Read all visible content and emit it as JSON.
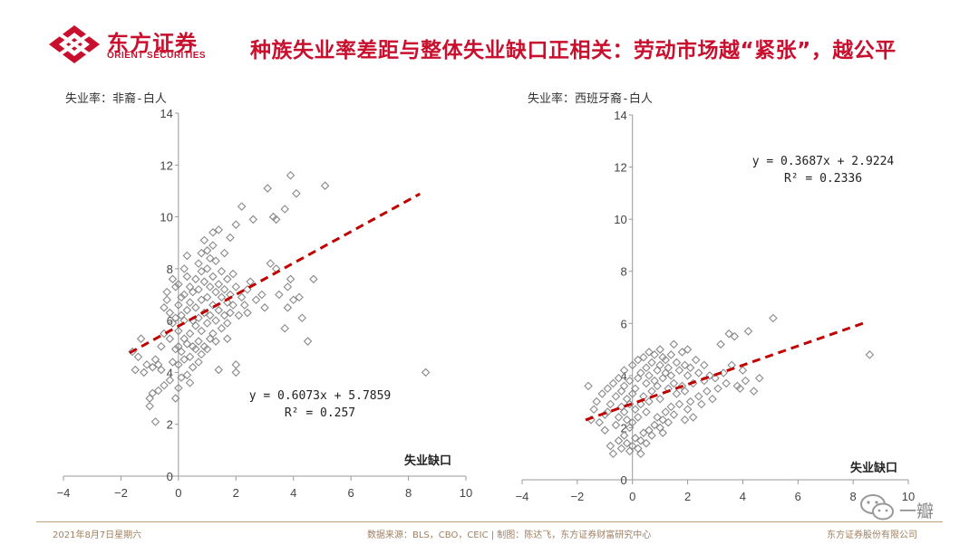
{
  "header": {
    "logo_cn": "东方证券",
    "logo_en": "ORIENT SECURITIES",
    "headline": "种族失业率差距与整体失业缺口正相关：劳动市场越“紧张”，越公平"
  },
  "footer": {
    "date": "2021年8月7日星期六",
    "source": "数据来源：BLS，CBO，CEIC | 制图：陈达飞，东方证券财富研究中心",
    "company": "东方证券股份有限公司"
  },
  "watermark": {
    "text": "一瓣"
  },
  "chart_data": [
    {
      "type": "scatter",
      "ylabel": "失业率：非裔-白人",
      "xlabel": "失业缺口",
      "xlim": [
        -4,
        10
      ],
      "ylim": [
        0,
        14
      ],
      "xticks": [
        -4,
        -2,
        0,
        2,
        4,
        6,
        8,
        10
      ],
      "yticks": [
        0,
        2,
        4,
        6,
        8,
        10,
        12,
        14
      ],
      "grid": false,
      "trendline": {
        "slope": 0.6073,
        "intercept": 5.7859,
        "x_range": [
          -1.7,
          8.4
        ]
      },
      "equation": "y = 0.6073x + 5.7859",
      "r2": "R² = 0.257",
      "points": [
        [
          -1.6,
          4.8
        ],
        [
          -1.5,
          4.1
        ],
        [
          -1.4,
          4.6
        ],
        [
          -1.3,
          5.3
        ],
        [
          -1.2,
          4.0
        ],
        [
          -1.1,
          4.3
        ],
        [
          -1.0,
          3.0
        ],
        [
          -1.0,
          2.7
        ],
        [
          -0.9,
          3.2
        ],
        [
          -0.9,
          4.2
        ],
        [
          -0.8,
          2.1
        ],
        [
          -0.8,
          4.5
        ],
        [
          -0.7,
          3.3
        ],
        [
          -0.6,
          4.1
        ],
        [
          -0.6,
          5.0
        ],
        [
          -0.5,
          3.5
        ],
        [
          -0.5,
          5.5
        ],
        [
          -0.5,
          6.5
        ],
        [
          -0.4,
          7.1
        ],
        [
          -0.4,
          6.8
        ],
        [
          -0.3,
          3.7
        ],
        [
          -0.3,
          5.3
        ],
        [
          -0.3,
          6.3
        ],
        [
          -0.2,
          7.6
        ],
        [
          -0.2,
          4.4
        ],
        [
          -0.2,
          5.9
        ],
        [
          -0.1,
          3.0
        ],
        [
          -0.1,
          4.9
        ],
        [
          -0.1,
          6.1
        ],
        [
          -0.1,
          7.3
        ],
        [
          0.0,
          3.4
        ],
        [
          0.0,
          4.3
        ],
        [
          0.0,
          5.0
        ],
        [
          0.0,
          5.6
        ],
        [
          0.0,
          6.6
        ],
        [
          0.0,
          7.4
        ],
        [
          0.1,
          3.8
        ],
        [
          0.1,
          4.8
        ],
        [
          0.1,
          6.2
        ],
        [
          0.1,
          6.9
        ],
        [
          0.2,
          4.5
        ],
        [
          0.2,
          5.3
        ],
        [
          0.2,
          6.0
        ],
        [
          0.2,
          7.0
        ],
        [
          0.2,
          8.0
        ],
        [
          0.3,
          3.9
        ],
        [
          0.3,
          5.1
        ],
        [
          0.3,
          6.4
        ],
        [
          0.3,
          7.7
        ],
        [
          0.3,
          8.5
        ],
        [
          0.4,
          4.6
        ],
        [
          0.4,
          5.5
        ],
        [
          0.4,
          6.7
        ],
        [
          0.4,
          7.3
        ],
        [
          0.5,
          4.2
        ],
        [
          0.5,
          5.0
        ],
        [
          0.5,
          6.0
        ],
        [
          0.5,
          7.1
        ],
        [
          0.6,
          4.9
        ],
        [
          0.6,
          5.8
        ],
        [
          0.6,
          6.5
        ],
        [
          0.6,
          7.6
        ],
        [
          0.7,
          4.4
        ],
        [
          0.7,
          5.2
        ],
        [
          0.7,
          6.1
        ],
        [
          0.7,
          7.2
        ],
        [
          0.7,
          8.2
        ],
        [
          0.8,
          4.7
        ],
        [
          0.8,
          5.6
        ],
        [
          0.8,
          6.8
        ],
        [
          0.8,
          7.9
        ],
        [
          0.8,
          8.6
        ],
        [
          0.9,
          5.0
        ],
        [
          0.9,
          6.3
        ],
        [
          0.9,
          7.5
        ],
        [
          0.9,
          9.1
        ],
        [
          1.0,
          4.9
        ],
        [
          1.0,
          5.9
        ],
        [
          1.0,
          6.9
        ],
        [
          1.0,
          8.0
        ],
        [
          1.0,
          8.7
        ],
        [
          1.1,
          5.3
        ],
        [
          1.1,
          6.2
        ],
        [
          1.1,
          7.3
        ],
        [
          1.1,
          8.4
        ],
        [
          1.2,
          5.5
        ],
        [
          1.2,
          6.6
        ],
        [
          1.2,
          7.7
        ],
        [
          1.2,
          8.9
        ],
        [
          1.2,
          9.4
        ],
        [
          1.3,
          5.2
        ],
        [
          1.3,
          6.0
        ],
        [
          1.3,
          7.1
        ],
        [
          1.3,
          8.3
        ],
        [
          1.4,
          4.1
        ],
        [
          1.4,
          6.4
        ],
        [
          1.4,
          7.4
        ],
        [
          1.4,
          9.5
        ],
        [
          1.5,
          5.7
        ],
        [
          1.5,
          6.9
        ],
        [
          1.5,
          7.9
        ],
        [
          1.6,
          6.2
        ],
        [
          1.6,
          7.2
        ],
        [
          1.6,
          8.6
        ],
        [
          1.7,
          5.9
        ],
        [
          1.7,
          6.7
        ],
        [
          1.7,
          7.6
        ],
        [
          1.8,
          6.3
        ],
        [
          1.8,
          7.0
        ],
        [
          1.8,
          9.2
        ],
        [
          1.9,
          6.6
        ],
        [
          1.9,
          7.8
        ],
        [
          2.0,
          7.3
        ],
        [
          2.0,
          9.7
        ],
        [
          2.0,
          4.3
        ],
        [
          2.0,
          4.0
        ],
        [
          2.1,
          6.2
        ],
        [
          2.2,
          6.9
        ],
        [
          2.2,
          10.4
        ],
        [
          2.3,
          6.6
        ],
        [
          2.4,
          7.2
        ],
        [
          2.5,
          7.5
        ],
        [
          2.6,
          9.9
        ],
        [
          2.7,
          6.8
        ],
        [
          2.9,
          7.0
        ],
        [
          3.0,
          6.5
        ],
        [
          3.1,
          11.1
        ],
        [
          3.2,
          8.2
        ],
        [
          3.3,
          10.0
        ],
        [
          3.4,
          8.0
        ],
        [
          3.4,
          9.9
        ],
        [
          3.5,
          7.0
        ],
        [
          3.7,
          10.3
        ],
        [
          3.7,
          5.7
        ],
        [
          3.8,
          6.5
        ],
        [
          3.8,
          7.3
        ],
        [
          3.9,
          7.6
        ],
        [
          3.9,
          11.6
        ],
        [
          4.0,
          6.8
        ],
        [
          4.1,
          10.9
        ],
        [
          4.2,
          6.9
        ],
        [
          4.3,
          6.1
        ],
        [
          4.5,
          5.2
        ],
        [
          4.7,
          7.6
        ],
        [
          5.1,
          11.2
        ],
        [
          8.6,
          4.0
        ],
        [
          -0.7,
          4.3
        ],
        [
          0.4,
          3.6
        ],
        [
          1.7,
          5.3
        ],
        [
          2.4,
          6.3
        ]
      ]
    },
    {
      "type": "scatter",
      "ylabel": "失业率：西班牙裔-白人",
      "xlabel": "失业缺口",
      "xlim": [
        -4,
        10
      ],
      "ylim": [
        0,
        14
      ],
      "xticks": [
        -4,
        -2,
        0,
        2,
        4,
        6,
        8,
        10
      ],
      "yticks": [
        0,
        2,
        4,
        6,
        8,
        10,
        12,
        14
      ],
      "grid": false,
      "trendline": {
        "slope": 0.3687,
        "intercept": 2.9224,
        "x_range": [
          -1.7,
          8.4
        ]
      },
      "equation": "y = 0.3687x + 2.9224",
      "r2": "R² = 0.2336",
      "points": [
        [
          -1.6,
          3.6
        ],
        [
          -1.5,
          2.3
        ],
        [
          -1.4,
          2.7
        ],
        [
          -1.3,
          3.0
        ],
        [
          -1.2,
          2.2
        ],
        [
          -1.1,
          3.3
        ],
        [
          -1.0,
          1.9
        ],
        [
          -1.0,
          2.5
        ],
        [
          -0.9,
          3.5
        ],
        [
          -0.9,
          2.6
        ],
        [
          -0.8,
          1.3
        ],
        [
          -0.8,
          2.9
        ],
        [
          -0.7,
          3.7
        ],
        [
          -0.7,
          1.0
        ],
        [
          -0.6,
          2.1
        ],
        [
          -0.6,
          3.2
        ],
        [
          -0.5,
          1.5
        ],
        [
          -0.5,
          2.4
        ],
        [
          -0.5,
          3.9
        ],
        [
          -0.4,
          1.2
        ],
        [
          -0.4,
          2.8
        ],
        [
          -0.4,
          3.4
        ],
        [
          -0.3,
          1.7
        ],
        [
          -0.3,
          2.6
        ],
        [
          -0.3,
          3.6
        ],
        [
          -0.3,
          4.2
        ],
        [
          -0.2,
          1.4
        ],
        [
          -0.2,
          2.3
        ],
        [
          -0.2,
          3.1
        ],
        [
          -0.1,
          1.1
        ],
        [
          -0.1,
          2.0
        ],
        [
          -0.1,
          2.9
        ],
        [
          -0.1,
          3.8
        ],
        [
          0.0,
          1.3
        ],
        [
          0.0,
          2.2
        ],
        [
          0.0,
          3.3
        ],
        [
          0.0,
          4.4
        ],
        [
          0.1,
          1.6
        ],
        [
          0.1,
          2.7
        ],
        [
          0.1,
          3.5
        ],
        [
          0.2,
          1.2
        ],
        [
          0.2,
          2.4
        ],
        [
          0.2,
          3.9
        ],
        [
          0.2,
          4.6
        ],
        [
          0.3,
          1.5
        ],
        [
          0.3,
          2.9
        ],
        [
          0.3,
          4.1
        ],
        [
          0.4,
          1.8
        ],
        [
          0.4,
          3.2
        ],
        [
          0.4,
          4.7
        ],
        [
          0.5,
          1.4
        ],
        [
          0.5,
          2.6
        ],
        [
          0.5,
          3.7
        ],
        [
          0.5,
          4.3
        ],
        [
          0.6,
          1.9
        ],
        [
          0.6,
          3.0
        ],
        [
          0.6,
          4.0
        ],
        [
          0.6,
          4.9
        ],
        [
          0.7,
          1.7
        ],
        [
          0.7,
          3.4
        ],
        [
          0.7,
          4.5
        ],
        [
          0.8,
          2.1
        ],
        [
          0.8,
          3.8
        ],
        [
          0.8,
          4.8
        ],
        [
          0.9,
          2.4
        ],
        [
          0.9,
          3.6
        ],
        [
          0.9,
          4.2
        ],
        [
          1.0,
          2.0
        ],
        [
          1.0,
          3.1
        ],
        [
          1.0,
          4.4
        ],
        [
          1.0,
          5.0
        ],
        [
          1.1,
          2.3
        ],
        [
          1.1,
          3.9
        ],
        [
          1.1,
          4.7
        ],
        [
          1.2,
          2.6
        ],
        [
          1.2,
          4.1
        ],
        [
          1.2,
          4.6
        ],
        [
          1.3,
          2.2
        ],
        [
          1.3,
          3.5
        ],
        [
          1.3,
          4.3
        ],
        [
          1.4,
          2.8
        ],
        [
          1.4,
          4.0
        ],
        [
          1.4,
          4.8
        ],
        [
          1.5,
          2.5
        ],
        [
          1.5,
          3.7
        ],
        [
          1.5,
          5.2
        ],
        [
          1.6,
          3.3
        ],
        [
          1.6,
          4.5
        ],
        [
          1.7,
          2.9
        ],
        [
          1.7,
          4.2
        ],
        [
          1.8,
          3.6
        ],
        [
          1.8,
          4.9
        ],
        [
          1.9,
          2.3
        ],
        [
          1.9,
          3.4
        ],
        [
          1.9,
          4.4
        ],
        [
          2.0,
          2.7
        ],
        [
          2.0,
          4.0
        ],
        [
          2.0,
          5.0
        ],
        [
          2.1,
          3.0
        ],
        [
          2.1,
          4.3
        ],
        [
          2.2,
          2.4
        ],
        [
          2.2,
          3.7
        ],
        [
          2.3,
          4.6
        ],
        [
          2.4,
          3.2
        ],
        [
          2.4,
          4.1
        ],
        [
          2.5,
          2.9
        ],
        [
          2.6,
          3.8
        ],
        [
          2.6,
          4.4
        ],
        [
          2.7,
          3.4
        ],
        [
          2.8,
          4.0
        ],
        [
          2.9,
          3.1
        ],
        [
          3.0,
          3.9
        ],
        [
          3.1,
          3.5
        ],
        [
          3.2,
          5.2
        ],
        [
          3.3,
          4.1
        ],
        [
          3.4,
          3.7
        ],
        [
          3.5,
          5.6
        ],
        [
          3.6,
          4.4
        ],
        [
          3.7,
          5.5
        ],
        [
          3.8,
          3.6
        ],
        [
          3.9,
          3.5
        ],
        [
          4.0,
          4.2
        ],
        [
          4.1,
          3.8
        ],
        [
          4.2,
          5.7
        ],
        [
          4.4,
          3.4
        ],
        [
          4.6,
          3.9
        ],
        [
          5.1,
          6.2
        ],
        [
          8.6,
          4.8
        ],
        [
          0.3,
          1.0
        ],
        [
          1.1,
          1.8
        ]
      ]
    }
  ]
}
